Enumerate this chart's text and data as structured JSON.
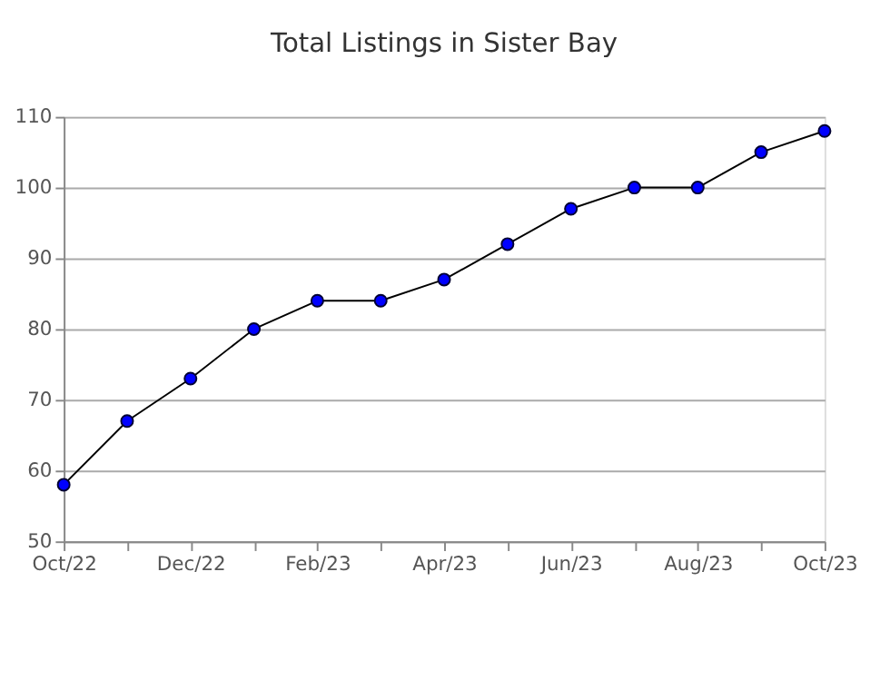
{
  "chart_data": {
    "type": "line",
    "title": "Total Listings in Sister Bay",
    "categories": [
      "Oct/22",
      null,
      "Dec/22",
      null,
      "Feb/23",
      null,
      "Apr/23",
      null,
      "Jun/23",
      null,
      "Aug/23",
      null,
      "Oct/23"
    ],
    "series": [
      {
        "color": "#000000",
        "marker": "none",
        "values": [
          58,
          67,
          73,
          80,
          84,
          84,
          87,
          92,
          97,
          100,
          100,
          105,
          108
        ]
      },
      {
        "type": "scatter",
        "marker": "circle",
        "color": "#0000ff",
        "values": [
          58,
          67,
          73,
          80,
          84,
          84,
          87,
          92,
          97,
          100,
          100,
          105,
          108
        ]
      }
    ],
    "ylim": [
      50,
      110
    ],
    "yticks": [
      50,
      60,
      70,
      80,
      90,
      100,
      110
    ],
    "grid": "y",
    "line_style": "solid"
  }
}
